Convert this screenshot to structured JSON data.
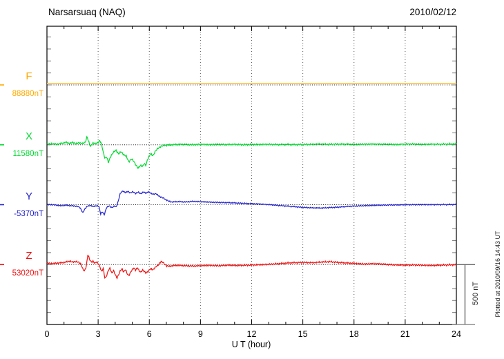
{
  "chart_data": {
    "type": "line",
    "title": "Narsarsuaq (NAQ)",
    "date": "2010/02/12",
    "xlabel": "U T (hour)",
    "x_range": [
      0,
      24
    ],
    "x_ticks": [
      0,
      3,
      6,
      9,
      12,
      15,
      18,
      21,
      24
    ],
    "x_minor_step_hours": 1,
    "grid_hours": [
      3,
      6,
      9,
      12,
      15,
      18,
      21
    ],
    "amplitude_tick_nT": 100,
    "baseline_spacing_nT": 500,
    "scale_bar": {
      "label": "500 nT",
      "nT": 500
    },
    "plotted_at": "Plotted at 2010/09/16 14:43 UT",
    "grid": "dotted",
    "legend_position": "left-margin",
    "series": [
      {
        "component": "F",
        "base_value_label": "88880nT",
        "color": "#FFAA00",
        "trace_color": "#FFC34D",
        "noise_nT": 0,
        "points_hour_nT": [
          [
            0,
            11
          ],
          [
            24,
            11
          ]
        ]
      },
      {
        "component": "X",
        "base_value_label": "11580nT",
        "color": "#00D930",
        "trace_color": "#00D930",
        "noise_nT": 4,
        "points_hour_nT": [
          [
            0,
            6
          ],
          [
            0.3,
            9
          ],
          [
            0.6,
            4
          ],
          [
            0.9,
            13
          ],
          [
            1.1,
            22
          ],
          [
            1.3,
            12
          ],
          [
            1.5,
            19
          ],
          [
            1.7,
            10
          ],
          [
            1.9,
            16
          ],
          [
            2.1,
            11
          ],
          [
            2.25,
            20
          ],
          [
            2.35,
            70
          ],
          [
            2.45,
            25
          ],
          [
            2.55,
            -14
          ],
          [
            2.7,
            16
          ],
          [
            2.85,
            8
          ],
          [
            3.0,
            20
          ],
          [
            3.1,
            38
          ],
          [
            3.2,
            4
          ],
          [
            3.3,
            -62
          ],
          [
            3.4,
            -112
          ],
          [
            3.5,
            -100
          ],
          [
            3.6,
            -148
          ],
          [
            3.75,
            -92
          ],
          [
            3.9,
            -62
          ],
          [
            4.05,
            -46
          ],
          [
            4.2,
            -76
          ],
          [
            4.35,
            -58
          ],
          [
            4.5,
            -82
          ],
          [
            4.65,
            -96
          ],
          [
            4.8,
            -142
          ],
          [
            4.95,
            -118
          ],
          [
            5.1,
            -140
          ],
          [
            5.25,
            -176
          ],
          [
            5.35,
            -196
          ],
          [
            5.5,
            -168
          ],
          [
            5.6,
            -182
          ],
          [
            5.7,
            -158
          ],
          [
            5.8,
            -172
          ],
          [
            5.9,
            -120
          ],
          [
            6.0,
            -92
          ],
          [
            6.1,
            -74
          ],
          [
            6.2,
            -92
          ],
          [
            6.35,
            -56
          ],
          [
            6.5,
            -30
          ],
          [
            6.7,
            -12
          ],
          [
            6.9,
            -4
          ],
          [
            7.2,
            -2
          ],
          [
            7.6,
            2
          ],
          [
            8,
            4
          ],
          [
            8.5,
            1
          ],
          [
            9,
            3
          ],
          [
            9.5,
            1
          ],
          [
            10,
            4
          ],
          [
            10.5,
            2
          ],
          [
            11,
            3
          ],
          [
            11.5,
            1
          ],
          [
            12,
            3
          ],
          [
            12.5,
            2
          ],
          [
            13,
            4
          ],
          [
            13.5,
            2
          ],
          [
            14,
            3
          ],
          [
            14.5,
            1
          ],
          [
            15,
            3
          ],
          [
            15.5,
            4
          ],
          [
            16,
            6
          ],
          [
            16.5,
            4
          ],
          [
            17,
            6
          ],
          [
            17.5,
            5
          ],
          [
            18,
            3
          ],
          [
            18.5,
            5
          ],
          [
            19,
            6
          ],
          [
            19.5,
            4
          ],
          [
            20,
            5
          ],
          [
            20.5,
            3
          ],
          [
            21,
            5
          ],
          [
            21.5,
            6
          ],
          [
            22,
            4
          ],
          [
            22.5,
            5
          ],
          [
            23,
            4
          ],
          [
            23.5,
            6
          ],
          [
            24,
            8
          ]
        ]
      },
      {
        "component": "Y",
        "base_value_label": "-5370nT",
        "color": "#2222CC",
        "trace_color": "#2222CC",
        "noise_nT": 3,
        "points_hour_nT": [
          [
            0,
            2
          ],
          [
            0.4,
            -1
          ],
          [
            0.8,
            -9
          ],
          [
            1.1,
            -4
          ],
          [
            1.4,
            -8
          ],
          [
            1.7,
            -12
          ],
          [
            1.9,
            -20
          ],
          [
            2.0,
            -38
          ],
          [
            2.1,
            -68
          ],
          [
            2.2,
            -42
          ],
          [
            2.35,
            -12
          ],
          [
            2.55,
            -8
          ],
          [
            2.75,
            -14
          ],
          [
            2.95,
            -9
          ],
          [
            3.05,
            -14
          ],
          [
            3.15,
            -78
          ],
          [
            3.25,
            -58
          ],
          [
            3.35,
            -86
          ],
          [
            3.5,
            -22
          ],
          [
            3.65,
            -10
          ],
          [
            3.8,
            -24
          ],
          [
            3.95,
            -12
          ],
          [
            4.05,
            -20
          ],
          [
            4.15,
            15
          ],
          [
            4.3,
            95
          ],
          [
            4.45,
            116
          ],
          [
            4.6,
            100
          ],
          [
            4.75,
            112
          ],
          [
            4.9,
            98
          ],
          [
            5.05,
            108
          ],
          [
            5.2,
            94
          ],
          [
            5.35,
            104
          ],
          [
            5.5,
            92
          ],
          [
            5.65,
            106
          ],
          [
            5.8,
            96
          ],
          [
            5.95,
            108
          ],
          [
            6.1,
            94
          ],
          [
            6.25,
            88
          ],
          [
            6.4,
            92
          ],
          [
            6.55,
            74
          ],
          [
            6.7,
            62
          ],
          [
            6.85,
            54
          ],
          [
            7.0,
            40
          ],
          [
            7.15,
            28
          ],
          [
            7.35,
            22
          ],
          [
            7.7,
            26
          ],
          [
            8.1,
            23
          ],
          [
            8.6,
            28
          ],
          [
            9.1,
            24
          ],
          [
            9.6,
            21
          ],
          [
            10.1,
            19
          ],
          [
            10.6,
            17
          ],
          [
            11.1,
            14
          ],
          [
            11.6,
            11
          ],
          [
            12.1,
            8
          ],
          [
            12.6,
            4
          ],
          [
            13.1,
            0
          ],
          [
            13.6,
            -6
          ],
          [
            14.1,
            -12
          ],
          [
            14.6,
            -18
          ],
          [
            15.1,
            -23
          ],
          [
            15.6,
            -26
          ],
          [
            16.1,
            -28
          ],
          [
            16.6,
            -24
          ],
          [
            17.1,
            -20
          ],
          [
            17.6,
            -15
          ],
          [
            18.1,
            -11
          ],
          [
            18.6,
            -8
          ],
          [
            19.1,
            -6
          ],
          [
            19.6,
            -4
          ],
          [
            20.1,
            -2
          ],
          [
            21,
            -1
          ],
          [
            22,
            1
          ],
          [
            23,
            0
          ],
          [
            24,
            2
          ]
        ]
      },
      {
        "component": "Z",
        "base_value_label": "53020nT",
        "color": "#EE1111",
        "trace_color": "#EE1111",
        "noise_nT": 4,
        "points_hour_nT": [
          [
            0,
            12
          ],
          [
            0.3,
            8
          ],
          [
            0.6,
            12
          ],
          [
            0.9,
            16
          ],
          [
            1.2,
            24
          ],
          [
            1.35,
            30
          ],
          [
            1.5,
            20
          ],
          [
            1.7,
            27
          ],
          [
            1.85,
            18
          ],
          [
            2.0,
            6
          ],
          [
            2.1,
            -36
          ],
          [
            2.2,
            -56
          ],
          [
            2.3,
            -18
          ],
          [
            2.4,
            86
          ],
          [
            2.5,
            42
          ],
          [
            2.6,
            20
          ],
          [
            2.7,
            30
          ],
          [
            2.8,
            12
          ],
          [
            2.9,
            22
          ],
          [
            3.0,
            10
          ],
          [
            3.1,
            -14
          ],
          [
            3.2,
            -60
          ],
          [
            3.3,
            -32
          ],
          [
            3.4,
            -116
          ],
          [
            3.5,
            -92
          ],
          [
            3.6,
            -50
          ],
          [
            3.7,
            -28
          ],
          [
            3.8,
            -72
          ],
          [
            3.9,
            -50
          ],
          [
            4.0,
            -82
          ],
          [
            4.1,
            -112
          ],
          [
            4.2,
            -84
          ],
          [
            4.3,
            -54
          ],
          [
            4.4,
            -34
          ],
          [
            4.5,
            -62
          ],
          [
            4.6,
            -40
          ],
          [
            4.7,
            -76
          ],
          [
            4.8,
            -92
          ],
          [
            4.9,
            -64
          ],
          [
            5.0,
            -44
          ],
          [
            5.1,
            -28
          ],
          [
            5.2,
            -46
          ],
          [
            5.3,
            -24
          ],
          [
            5.4,
            -52
          ],
          [
            5.5,
            -64
          ],
          [
            5.6,
            -44
          ],
          [
            5.7,
            -58
          ],
          [
            5.8,
            -70
          ],
          [
            5.9,
            -60
          ],
          [
            6.0,
            -46
          ],
          [
            6.1,
            -34
          ],
          [
            6.2,
            -44
          ],
          [
            6.35,
            -24
          ],
          [
            6.5,
            -6
          ],
          [
            6.6,
            12
          ],
          [
            6.7,
            26
          ],
          [
            6.8,
            18
          ],
          [
            6.9,
            4
          ],
          [
            7.0,
            -10
          ],
          [
            7.15,
            -15
          ],
          [
            7.35,
            -10
          ],
          [
            7.7,
            -6
          ],
          [
            8.1,
            -9
          ],
          [
            8.6,
            -12
          ],
          [
            9.1,
            -9
          ],
          [
            9.6,
            -7
          ],
          [
            10.1,
            -9
          ],
          [
            10.6,
            -5
          ],
          [
            11.1,
            -8
          ],
          [
            11.6,
            -5
          ],
          [
            12.1,
            -3
          ],
          [
            12.6,
            -1
          ],
          [
            13.1,
            3
          ],
          [
            13.6,
            8
          ],
          [
            14.1,
            13
          ],
          [
            14.6,
            16
          ],
          [
            15.1,
            18
          ],
          [
            15.6,
            16
          ],
          [
            16.1,
            21
          ],
          [
            16.6,
            24
          ],
          [
            17.1,
            18
          ],
          [
            17.6,
            13
          ],
          [
            18.1,
            9
          ],
          [
            18.6,
            5
          ],
          [
            19.1,
            7
          ],
          [
            19.6,
            4
          ],
          [
            20.1,
            0
          ],
          [
            20.6,
            -3
          ],
          [
            21.1,
            -5
          ],
          [
            21.6,
            -3
          ],
          [
            22.1,
            -5
          ],
          [
            22.6,
            -8
          ],
          [
            23.1,
            -5
          ],
          [
            23.5,
            -3
          ],
          [
            24,
            -1
          ]
        ]
      }
    ]
  }
}
